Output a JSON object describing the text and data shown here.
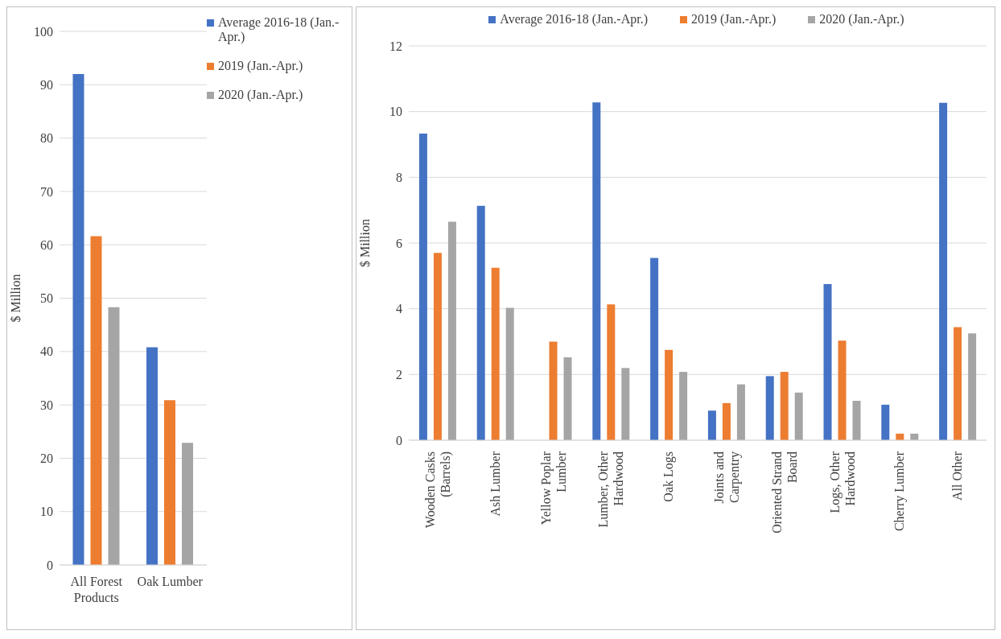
{
  "chart_data": [
    {
      "type": "bar",
      "ylabel": "$ Million",
      "categories": [
        "All Forest Products",
        "Oak Lumber"
      ],
      "series": [
        {
          "name": "Average 2016-18 (Jan.-Apr.)",
          "color": "#4472c4",
          "values": [
            92.0,
            40.8
          ]
        },
        {
          "name": "2019 (Jan.-Apr.)",
          "color": "#ed7d31",
          "values": [
            61.6,
            30.9
          ]
        },
        {
          "name": "2020 (Jan.-Apr.)",
          "color": "#a5a5a5",
          "values": [
            48.3,
            22.9
          ]
        }
      ],
      "ylim": [
        0,
        100
      ],
      "yticks": [
        0,
        10,
        20,
        30,
        40,
        50,
        60,
        70,
        80,
        90,
        100
      ],
      "grid": "y",
      "legend": "top right"
    },
    {
      "type": "bar",
      "ylabel": "$ Million",
      "categories": [
        "Wooden Casks (Barrels)",
        "Ash Lumber",
        "Yellow Poplar Lumber",
        "Lumber, Other Hardwood",
        "Oak Logs",
        "Joints and Carpentry",
        "Oriented Strand Board",
        "Logs, Other Hardwood",
        "Cherry Lumber",
        "All Other"
      ],
      "series": [
        {
          "name": "Average 2016-18 (Jan.-Apr.)",
          "color": "#4472c4",
          "values": [
            9.33,
            7.13,
            null,
            10.28,
            5.55,
            0.9,
            1.95,
            4.75,
            1.08,
            10.27
          ]
        },
        {
          "name": "2019 (Jan.-Apr.)",
          "color": "#ed7d31",
          "values": [
            5.7,
            5.25,
            3.0,
            4.13,
            2.75,
            1.13,
            2.08,
            3.03,
            0.2,
            3.44
          ]
        },
        {
          "name": "2020 (Jan.-Apr.)",
          "color": "#a5a5a5",
          "values": [
            6.65,
            4.03,
            2.52,
            2.2,
            2.08,
            1.7,
            1.45,
            1.2,
            0.2,
            3.25
          ]
        }
      ],
      "ylim": [
        0,
        12
      ],
      "yticks": [
        0,
        2,
        4,
        6,
        8,
        10,
        12
      ],
      "grid": "y",
      "legend": "top"
    }
  ]
}
